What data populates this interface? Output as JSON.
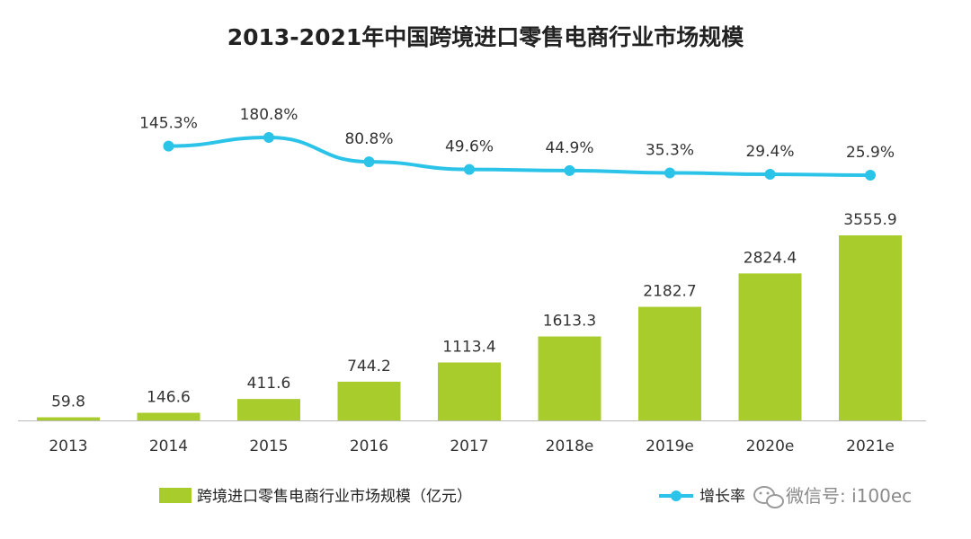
{
  "chart_data": {
    "type": "bar",
    "title": "2013-2021年中国跨境进口零售电商行业市场规模",
    "categories": [
      "2013",
      "2014",
      "2015",
      "2016",
      "2017",
      "2018e",
      "2019e",
      "2020e",
      "2021e"
    ],
    "series": [
      {
        "name": "跨境进口零售电商行业市场规模（亿元）",
        "type": "bar",
        "values": [
          59.8,
          146.6,
          411.6,
          744.2,
          1113.4,
          1613.3,
          2182.7,
          2824.4,
          3555.9
        ],
        "labels": [
          "59.8",
          "146.6",
          "411.6",
          "744.2",
          "1113.4",
          "1613.3",
          "2182.7",
          "2824.4",
          "3555.9"
        ]
      },
      {
        "name": "增长率",
        "type": "line",
        "values": [
          null,
          145.3,
          180.8,
          80.8,
          49.6,
          44.9,
          35.3,
          29.4,
          25.9
        ],
        "labels": [
          "",
          "145.3%",
          "180.8%",
          "80.8%",
          "49.6%",
          "44.9%",
          "35.3%",
          "29.4%",
          "25.9%"
        ]
      }
    ],
    "ylim": [
      0,
      3600
    ],
    "grid": false,
    "legend_position": "bottom"
  },
  "colors": {
    "bar": "#a8cc2c",
    "line": "#2cc3e8",
    "axis": "#bbbbbb"
  },
  "watermark": {
    "icon": "wechat-icon",
    "text": "微信号: i100ec"
  }
}
